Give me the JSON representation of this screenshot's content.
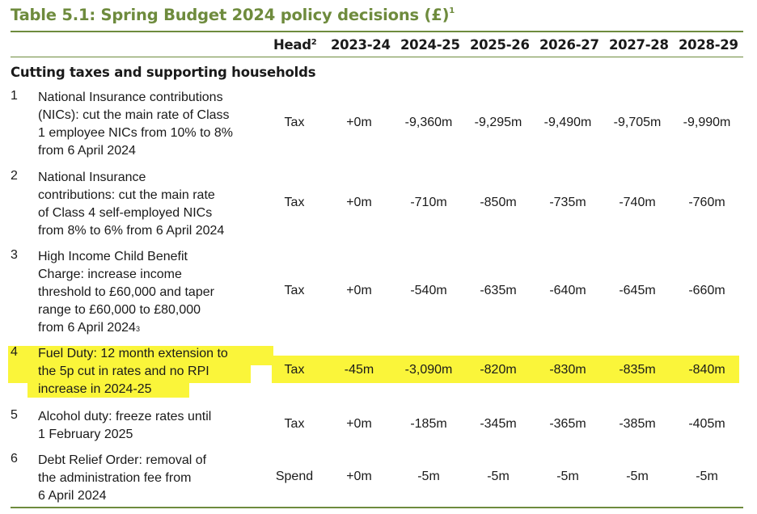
{
  "title": "Table 5.1: Spring Budget 2024 policy decisions (£)",
  "title_note": "1",
  "columns": {
    "head": "Head",
    "head_note": "2",
    "years": [
      "2023-24",
      "2024-25",
      "2025-26",
      "2026-27",
      "2027-28",
      "2028-29"
    ]
  },
  "section_title": "Cutting taxes and supporting households",
  "highlight_color": "#faf53a",
  "accent_color": "#6e8b3d",
  "rows": [
    {
      "num": "1",
      "desc": "National Insurance contributions\n(NICs): cut the main rate of Class\n1 employee NICs from 10% to 8%\nfrom 6 April 2024",
      "desc_note": "",
      "head": "Tax",
      "values": [
        "+0m",
        "-9,360m",
        "-9,295m",
        "-9,490m",
        "-9,705m",
        "-9,990m"
      ]
    },
    {
      "num": "2",
      "desc": "National Insurance\ncontributions: cut the main rate\nof Class 4 self-employed NICs\nfrom 8% to 6% from 6 April 2024",
      "desc_note": "",
      "head": "Tax",
      "values": [
        "+0m",
        "-710m",
        "-850m",
        "-735m",
        "-740m",
        "-760m"
      ]
    },
    {
      "num": "3",
      "desc": "High Income Child Benefit\nCharge: increase income\nthreshold to £60,000 and taper\nrange to £60,000 to £80,000\nfrom 6 April 2024",
      "desc_note": "3",
      "head": "Tax",
      "values": [
        "+0m",
        "-540m",
        "-635m",
        "-640m",
        "-645m",
        "-660m"
      ]
    },
    {
      "num": "4",
      "desc": "Fuel Duty: 12 month extension to\nthe 5p cut in rates and no RPI\nincrease in 2024-25",
      "desc_note": "",
      "head": "Tax",
      "values": [
        "-45m",
        "-3,090m",
        "-820m",
        "-830m",
        "-835m",
        "-840m"
      ],
      "highlighted": true
    },
    {
      "num": "5",
      "desc": "Alcohol duty: freeze rates until\n1 February 2025",
      "desc_note": "",
      "head": "Tax",
      "values": [
        "+0m",
        "-185m",
        "-345m",
        "-365m",
        "-385m",
        "-405m"
      ]
    },
    {
      "num": "6",
      "desc": "Debt Relief Order: removal of\nthe administration fee from\n6 April 2024",
      "desc_note": "",
      "head": "Spend",
      "values": [
        "+0m",
        "-5m",
        "-5m",
        "-5m",
        "-5m",
        "-5m"
      ]
    }
  ]
}
